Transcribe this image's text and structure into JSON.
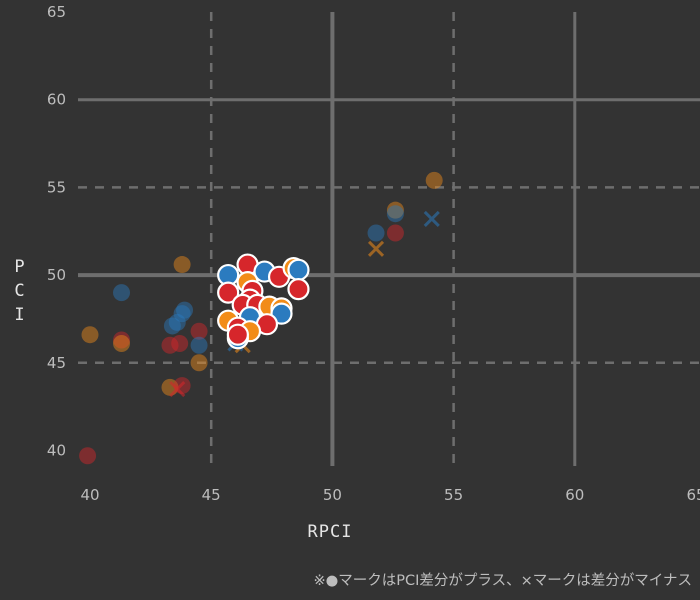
{
  "chart_data": {
    "type": "scatter",
    "xlabel": "RPCI",
    "ylabel": "PCI",
    "xlim": [
      40,
      65
    ],
    "ylim": [
      39,
      65
    ],
    "x_ticks": [
      "40",
      "45",
      "50",
      "55",
      "60",
      "65"
    ],
    "y_ticks": [
      "40",
      "45",
      "50",
      "55",
      "60",
      "65"
    ],
    "solid_gridlines_x": [
      50,
      60
    ],
    "solid_gridlines_y": [
      50,
      60
    ],
    "dashed_gridlines_x": [
      45,
      55
    ],
    "dashed_gridlines_y": [
      45,
      55
    ],
    "colors": {
      "background": "#333333",
      "blue": "#2b7bbf",
      "orange": "#f28c18",
      "red": "#d6262b",
      "highlight_outline": "#ffffff"
    },
    "points": [
      {
        "x": 41.3,
        "y": 49.0,
        "color": "blue",
        "marker": "circle",
        "highlight": false
      },
      {
        "x": 43.8,
        "y": 50.6,
        "color": "orange",
        "marker": "circle",
        "highlight": false
      },
      {
        "x": 40.0,
        "y": 46.6,
        "color": "orange",
        "marker": "circle",
        "highlight": false
      },
      {
        "x": 41.3,
        "y": 46.3,
        "color": "red",
        "marker": "circle",
        "highlight": false
      },
      {
        "x": 41.3,
        "y": 46.1,
        "color": "orange",
        "marker": "circle",
        "highlight": false
      },
      {
        "x": 43.6,
        "y": 47.3,
        "color": "blue",
        "marker": "circle",
        "highlight": false
      },
      {
        "x": 43.8,
        "y": 47.8,
        "color": "blue",
        "marker": "circle",
        "highlight": false
      },
      {
        "x": 43.9,
        "y": 48.0,
        "color": "blue",
        "marker": "circle",
        "highlight": false
      },
      {
        "x": 43.4,
        "y": 47.1,
        "color": "blue",
        "marker": "circle",
        "highlight": false
      },
      {
        "x": 44.5,
        "y": 46.8,
        "color": "red",
        "marker": "circle",
        "highlight": false
      },
      {
        "x": 43.3,
        "y": 46.0,
        "color": "red",
        "marker": "circle",
        "highlight": false
      },
      {
        "x": 43.7,
        "y": 46.1,
        "color": "red",
        "marker": "circle",
        "highlight": false
      },
      {
        "x": 44.5,
        "y": 46.0,
        "color": "blue",
        "marker": "circle",
        "highlight": false
      },
      {
        "x": 44.5,
        "y": 45.0,
        "color": "orange",
        "marker": "circle",
        "highlight": false
      },
      {
        "x": 43.3,
        "y": 43.6,
        "color": "orange",
        "marker": "circle",
        "highlight": false
      },
      {
        "x": 43.8,
        "y": 43.7,
        "color": "red",
        "marker": "circle",
        "highlight": false
      },
      {
        "x": 43.6,
        "y": 43.5,
        "color": "red",
        "marker": "cross",
        "highlight": false
      },
      {
        "x": 39.9,
        "y": 39.7,
        "color": "red",
        "marker": "circle",
        "highlight": false
      },
      {
        "x": 51.8,
        "y": 52.4,
        "color": "blue",
        "marker": "circle",
        "highlight": false
      },
      {
        "x": 52.6,
        "y": 53.7,
        "color": "orange",
        "marker": "circle",
        "highlight": false
      },
      {
        "x": 52.6,
        "y": 53.5,
        "color": "blue",
        "marker": "circle",
        "highlight": false
      },
      {
        "x": 52.6,
        "y": 52.4,
        "color": "red",
        "marker": "circle",
        "highlight": false
      },
      {
        "x": 51.8,
        "y": 51.5,
        "color": "orange",
        "marker": "cross",
        "highlight": false
      },
      {
        "x": 54.2,
        "y": 55.4,
        "color": "orange",
        "marker": "circle",
        "highlight": false
      },
      {
        "x": 54.1,
        "y": 53.2,
        "color": "blue",
        "marker": "cross",
        "highlight": false
      },
      {
        "x": 45.7,
        "y": 50.0,
        "color": "blue",
        "marker": "circle",
        "highlight": true
      },
      {
        "x": 46.5,
        "y": 50.6,
        "color": "red",
        "marker": "circle",
        "highlight": true
      },
      {
        "x": 47.2,
        "y": 50.2,
        "color": "blue",
        "marker": "circle",
        "highlight": true
      },
      {
        "x": 47.8,
        "y": 49.9,
        "color": "red",
        "marker": "circle",
        "highlight": true
      },
      {
        "x": 48.4,
        "y": 50.4,
        "color": "orange",
        "marker": "circle",
        "highlight": true
      },
      {
        "x": 48.6,
        "y": 50.3,
        "color": "blue",
        "marker": "circle",
        "highlight": true
      },
      {
        "x": 48.6,
        "y": 49.2,
        "color": "red",
        "marker": "circle",
        "highlight": true
      },
      {
        "x": 45.7,
        "y": 49.0,
        "color": "red",
        "marker": "circle",
        "highlight": true
      },
      {
        "x": 46.5,
        "y": 49.6,
        "color": "orange",
        "marker": "circle",
        "highlight": true
      },
      {
        "x": 46.7,
        "y": 49.1,
        "color": "red",
        "marker": "circle",
        "highlight": true
      },
      {
        "x": 46.6,
        "y": 48.6,
        "color": "red",
        "marker": "circle",
        "highlight": true
      },
      {
        "x": 46.3,
        "y": 48.3,
        "color": "red",
        "marker": "circle",
        "highlight": true
      },
      {
        "x": 46.9,
        "y": 48.3,
        "color": "red",
        "marker": "circle",
        "highlight": true
      },
      {
        "x": 47.4,
        "y": 48.2,
        "color": "orange",
        "marker": "circle",
        "highlight": true
      },
      {
        "x": 47.9,
        "y": 48.1,
        "color": "orange",
        "marker": "circle",
        "highlight": true
      },
      {
        "x": 47.9,
        "y": 47.8,
        "color": "blue",
        "marker": "circle",
        "highlight": true
      },
      {
        "x": 45.7,
        "y": 47.4,
        "color": "orange",
        "marker": "circle",
        "highlight": true
      },
      {
        "x": 46.6,
        "y": 47.6,
        "color": "blue",
        "marker": "circle",
        "highlight": true
      },
      {
        "x": 47.3,
        "y": 47.2,
        "color": "red",
        "marker": "circle",
        "highlight": true
      },
      {
        "x": 46.1,
        "y": 47.0,
        "color": "red",
        "marker": "circle",
        "highlight": true
      },
      {
        "x": 46.6,
        "y": 46.8,
        "color": "orange",
        "marker": "circle",
        "highlight": true
      },
      {
        "x": 46.1,
        "y": 46.4,
        "color": "blue",
        "marker": "circle",
        "highlight": true
      },
      {
        "x": 46.1,
        "y": 46.6,
        "color": "red",
        "marker": "circle",
        "highlight": true
      },
      {
        "x": 46.3,
        "y": 46.0,
        "color": "orange",
        "marker": "cross",
        "highlight": false
      },
      {
        "x": 46.0,
        "y": 46.1,
        "color": "blue",
        "marker": "cross",
        "highlight": false
      }
    ]
  },
  "footnote": "※●マークはPCI差分がプラス、×マークは差分がマイナス"
}
